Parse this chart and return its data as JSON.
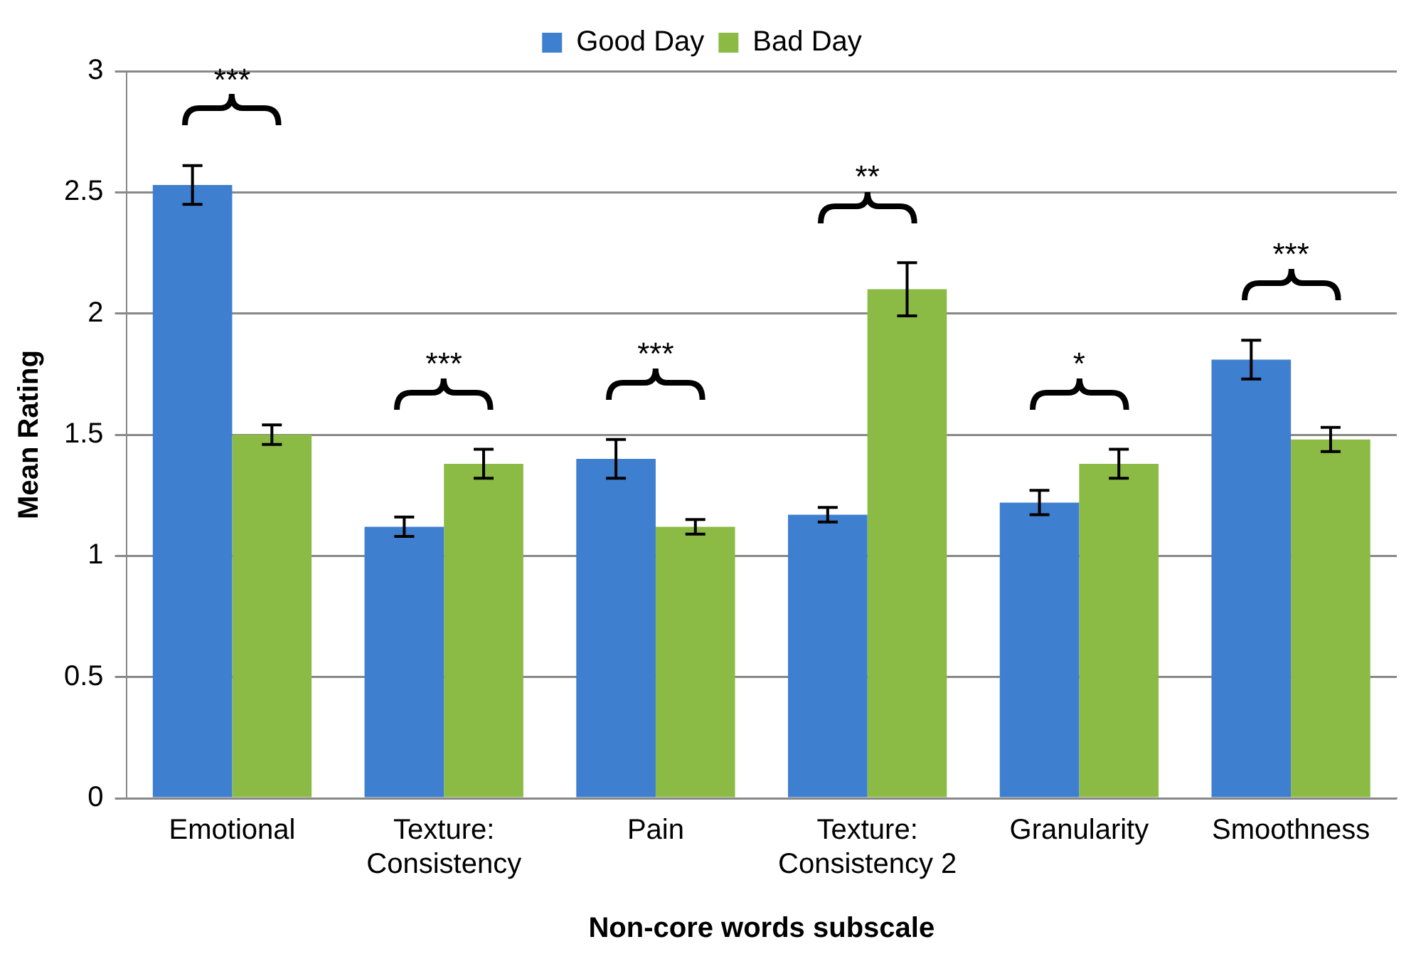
{
  "chart_data": {
    "type": "bar",
    "xlabel": "Non-core words subscale",
    "ylabel": "Mean Rating",
    "categories": [
      "Emotional",
      "Texture: Consistency",
      "Pain",
      "Texture: Consistency 2",
      "Granularity",
      "Smoothness"
    ],
    "series": [
      {
        "name": "Good Day",
        "color": "#3f7fd0",
        "values": [
          2.53,
          1.12,
          1.4,
          1.17,
          1.22,
          1.81
        ],
        "errors": [
          0.08,
          0.04,
          0.08,
          0.03,
          0.05,
          0.08
        ]
      },
      {
        "name": "Bad Day",
        "color": "#8cbb45",
        "values": [
          1.5,
          1.38,
          1.12,
          2.1,
          1.38,
          1.48
        ],
        "errors": [
          0.04,
          0.06,
          0.03,
          0.11,
          0.06,
          0.05
        ]
      }
    ],
    "ylim": [
      0,
      3
    ],
    "yticks": [
      0,
      0.5,
      1,
      1.5,
      2,
      2.5,
      3
    ],
    "grid": "y",
    "legend": "top",
    "annotations": [
      "***",
      "***",
      "***",
      "**",
      "*",
      "***"
    ]
  }
}
